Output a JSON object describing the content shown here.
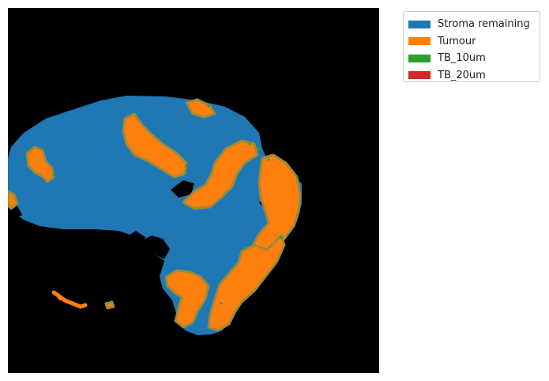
{
  "figure": {
    "background_color": "#000000",
    "legend_position": "outside-top-right",
    "legend": [
      {
        "label": "Stroma remaining",
        "color": "#1f77b4"
      },
      {
        "label": "Tumour",
        "color": "#ff7f0e"
      },
      {
        "label": "TB_10um",
        "color": "#2ca02c"
      },
      {
        "label": "TB_20um",
        "color": "#d62728"
      }
    ]
  }
}
